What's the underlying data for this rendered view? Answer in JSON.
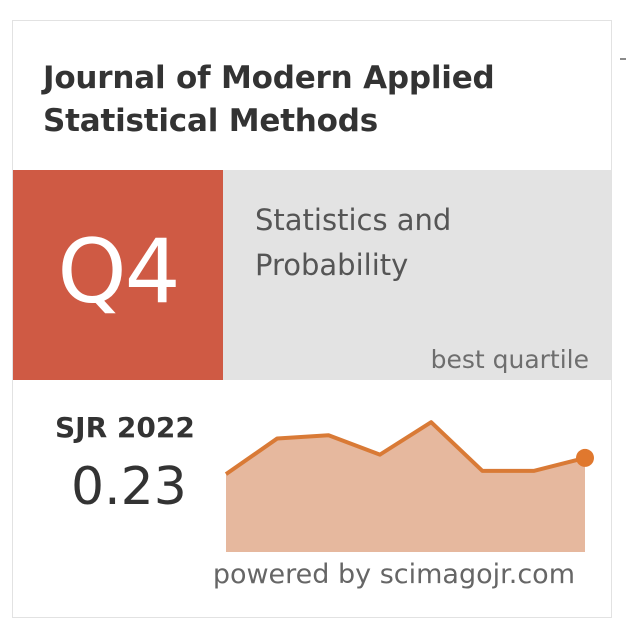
{
  "journal": {
    "title": "Journal of Modern Applied Statistical Methods"
  },
  "quartile": {
    "value": "Q4",
    "color": "#cf5a44"
  },
  "category": {
    "name": "Statistics and Probability",
    "sub_label": "best quartile",
    "background": "#e3e3e3"
  },
  "sjr": {
    "label": "SJR 2022",
    "value": "0.23"
  },
  "footer": {
    "text": "powered by scimagojr.com"
  },
  "chart_data": {
    "type": "area",
    "title": "",
    "x": [
      1,
      2,
      3,
      4,
      5,
      6,
      7,
      8
    ],
    "values": [
      0.24,
      0.35,
      0.36,
      0.3,
      0.4,
      0.25,
      0.25,
      0.29
    ],
    "ylim": [
      0.0,
      0.45
    ],
    "grid": false,
    "line_color": "#d97a36",
    "fill_color": "#e6b89e",
    "marker_color": "#e0782e"
  }
}
